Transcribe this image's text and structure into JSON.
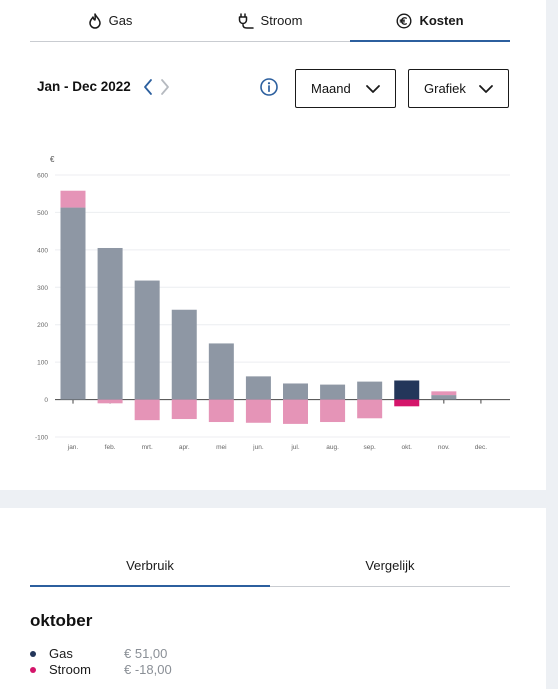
{
  "tabs": [
    {
      "label": "Gas",
      "icon": "flame-icon",
      "active": false
    },
    {
      "label": "Stroom",
      "icon": "plug-icon",
      "active": false
    },
    {
      "label": "Kosten",
      "icon": "euro-circle-icon",
      "active": true
    }
  ],
  "controls": {
    "period": "Jan - Dec 2022",
    "interval_select": "Maand",
    "view_select": "Grafiek"
  },
  "colors": {
    "accent": "#2c5f9e",
    "gas_bar": "#8e97a4",
    "gas_selected": "#23365a",
    "stroom_bar": "#e594b7",
    "stroom_selected": "#d4156a"
  },
  "chart_data": {
    "type": "bar",
    "ylabel": "€",
    "ylim": [
      -100,
      600
    ],
    "yticks": [
      -100,
      0,
      100,
      200,
      300,
      400,
      500,
      600
    ],
    "grid": true,
    "categories": [
      "jan.",
      "feb.",
      "mrt.",
      "apr.",
      "mei",
      "jun.",
      "jul.",
      "aug.",
      "sep.",
      "okt.",
      "nov.",
      "dec."
    ],
    "series": [
      {
        "name": "Gas",
        "values": [
          513,
          405,
          318,
          240,
          150,
          62,
          43,
          40,
          48,
          51,
          12,
          0
        ]
      },
      {
        "name": "Stroom",
        "values": [
          45,
          -10,
          -55,
          -52,
          -60,
          -62,
          -65,
          -60,
          -50,
          -18,
          10,
          0
        ]
      }
    ],
    "selected_index": 9
  },
  "detail": {
    "tabs": [
      {
        "label": "Verbruik",
        "active": true
      },
      {
        "label": "Vergelijk",
        "active": false
      }
    ],
    "month": "oktober",
    "rows": [
      {
        "name": "Gas",
        "value": "€ 51,00",
        "color": "#23365a"
      },
      {
        "name": "Stroom",
        "value": "€ -18,00",
        "color": "#d4156a"
      }
    ]
  }
}
